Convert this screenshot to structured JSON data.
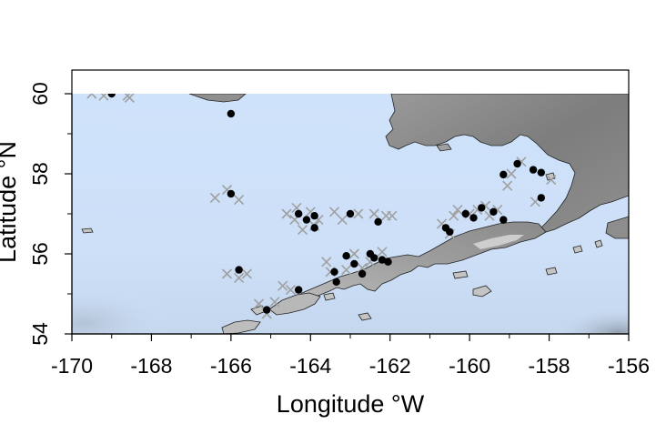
{
  "chart_data": {
    "type": "scatter",
    "title": "",
    "xlabel": "Longitude °W",
    "ylabel": "Latitude °N",
    "xlim": [
      -170,
      -156
    ],
    "ylim": [
      54,
      60
    ],
    "xticks": [
      -170,
      -168,
      -166,
      -164,
      -162,
      -160,
      -158,
      -156
    ],
    "yticks": [
      54,
      56,
      58,
      60
    ],
    "xtick_labels": [
      "-170",
      "-168",
      "-166",
      "-164",
      "-162",
      "-160",
      "-158",
      "-156"
    ],
    "ytick_labels": [
      "54",
      "56",
      "58",
      "60"
    ],
    "grid": false,
    "colors": {
      "ocean": "#cfe2fb",
      "land_light": "#d0d0d0",
      "land_dark": "#8a8a8a",
      "dot": "#000000",
      "cross": "#a0a0a0"
    },
    "series": [
      {
        "marker": "filled-circle",
        "color": "#000000",
        "points": [
          [
            -169,
            60.0
          ],
          [
            -166,
            59.5
          ],
          [
            -166,
            57.5
          ],
          [
            -165.8,
            55.6
          ],
          [
            -165.1,
            54.6
          ],
          [
            -164.3,
            57.0
          ],
          [
            -164.1,
            56.85
          ],
          [
            -163.9,
            56.95
          ],
          [
            -163.9,
            56.65
          ],
          [
            -164.3,
            55.1
          ],
          [
            -163.4,
            55.55
          ],
          [
            -163.35,
            55.3
          ],
          [
            -163.1,
            55.95
          ],
          [
            -163.0,
            57.0
          ],
          [
            -162.9,
            55.75
          ],
          [
            -162.7,
            55.5
          ],
          [
            -162.5,
            56.0
          ],
          [
            -162.4,
            55.9
          ],
          [
            -162.3,
            56.8
          ],
          [
            -162.2,
            55.85
          ],
          [
            -162.05,
            55.8
          ],
          [
            -160.6,
            56.65
          ],
          [
            -160.5,
            56.55
          ],
          [
            -160.1,
            57.0
          ],
          [
            -159.9,
            56.9
          ],
          [
            -159.7,
            57.15
          ],
          [
            -159.4,
            57.05
          ],
          [
            -159.15,
            56.85
          ],
          [
            -159.15,
            57.98
          ],
          [
            -158.8,
            58.25
          ],
          [
            -158.4,
            58.1
          ],
          [
            -158.2,
            58.03
          ],
          [
            -158.2,
            57.4
          ]
        ]
      },
      {
        "marker": "cross",
        "color": "#a0a0a0",
        "points": [
          [
            -169.5,
            60.0
          ],
          [
            -169.2,
            59.95
          ],
          [
            -168.6,
            59.95
          ],
          [
            -168.55,
            59.9
          ],
          [
            -166.4,
            57.4
          ],
          [
            -166.1,
            57.6
          ],
          [
            -165.8,
            57.35
          ],
          [
            -166.1,
            55.5
          ],
          [
            -165.8,
            55.4
          ],
          [
            -165.6,
            55.5
          ],
          [
            -165.3,
            54.75
          ],
          [
            -165.1,
            54.5
          ],
          [
            -164.9,
            54.8
          ],
          [
            -164.7,
            55.2
          ],
          [
            -164.5,
            55.1
          ],
          [
            -164.6,
            57.0
          ],
          [
            -164.4,
            56.85
          ],
          [
            -164.35,
            57.15
          ],
          [
            -164.2,
            56.6
          ],
          [
            -164.0,
            57.05
          ],
          [
            -163.9,
            56.7
          ],
          [
            -163.8,
            56.85
          ],
          [
            -163.6,
            55.8
          ],
          [
            -163.5,
            55.55
          ],
          [
            -163.4,
            57.05
          ],
          [
            -163.2,
            56.85
          ],
          [
            -163.1,
            55.6
          ],
          [
            -162.9,
            56.0
          ],
          [
            -162.8,
            57.0
          ],
          [
            -162.7,
            55.65
          ],
          [
            -162.5,
            55.8
          ],
          [
            -162.4,
            57.0
          ],
          [
            -162.2,
            56.05
          ],
          [
            -162.1,
            56.95
          ],
          [
            -161.95,
            56.95
          ],
          [
            -160.7,
            56.75
          ],
          [
            -160.5,
            56.5
          ],
          [
            -160.4,
            56.95
          ],
          [
            -160.3,
            57.1
          ],
          [
            -160.0,
            57.0
          ],
          [
            -159.8,
            57.1
          ],
          [
            -159.6,
            57.2
          ],
          [
            -159.5,
            56.95
          ],
          [
            -159.3,
            57.1
          ],
          [
            -159.05,
            57.7
          ],
          [
            -158.95,
            58.0
          ],
          [
            -158.7,
            58.3
          ],
          [
            -158.35,
            57.3
          ],
          [
            -157.95,
            57.85
          ]
        ]
      }
    ]
  }
}
